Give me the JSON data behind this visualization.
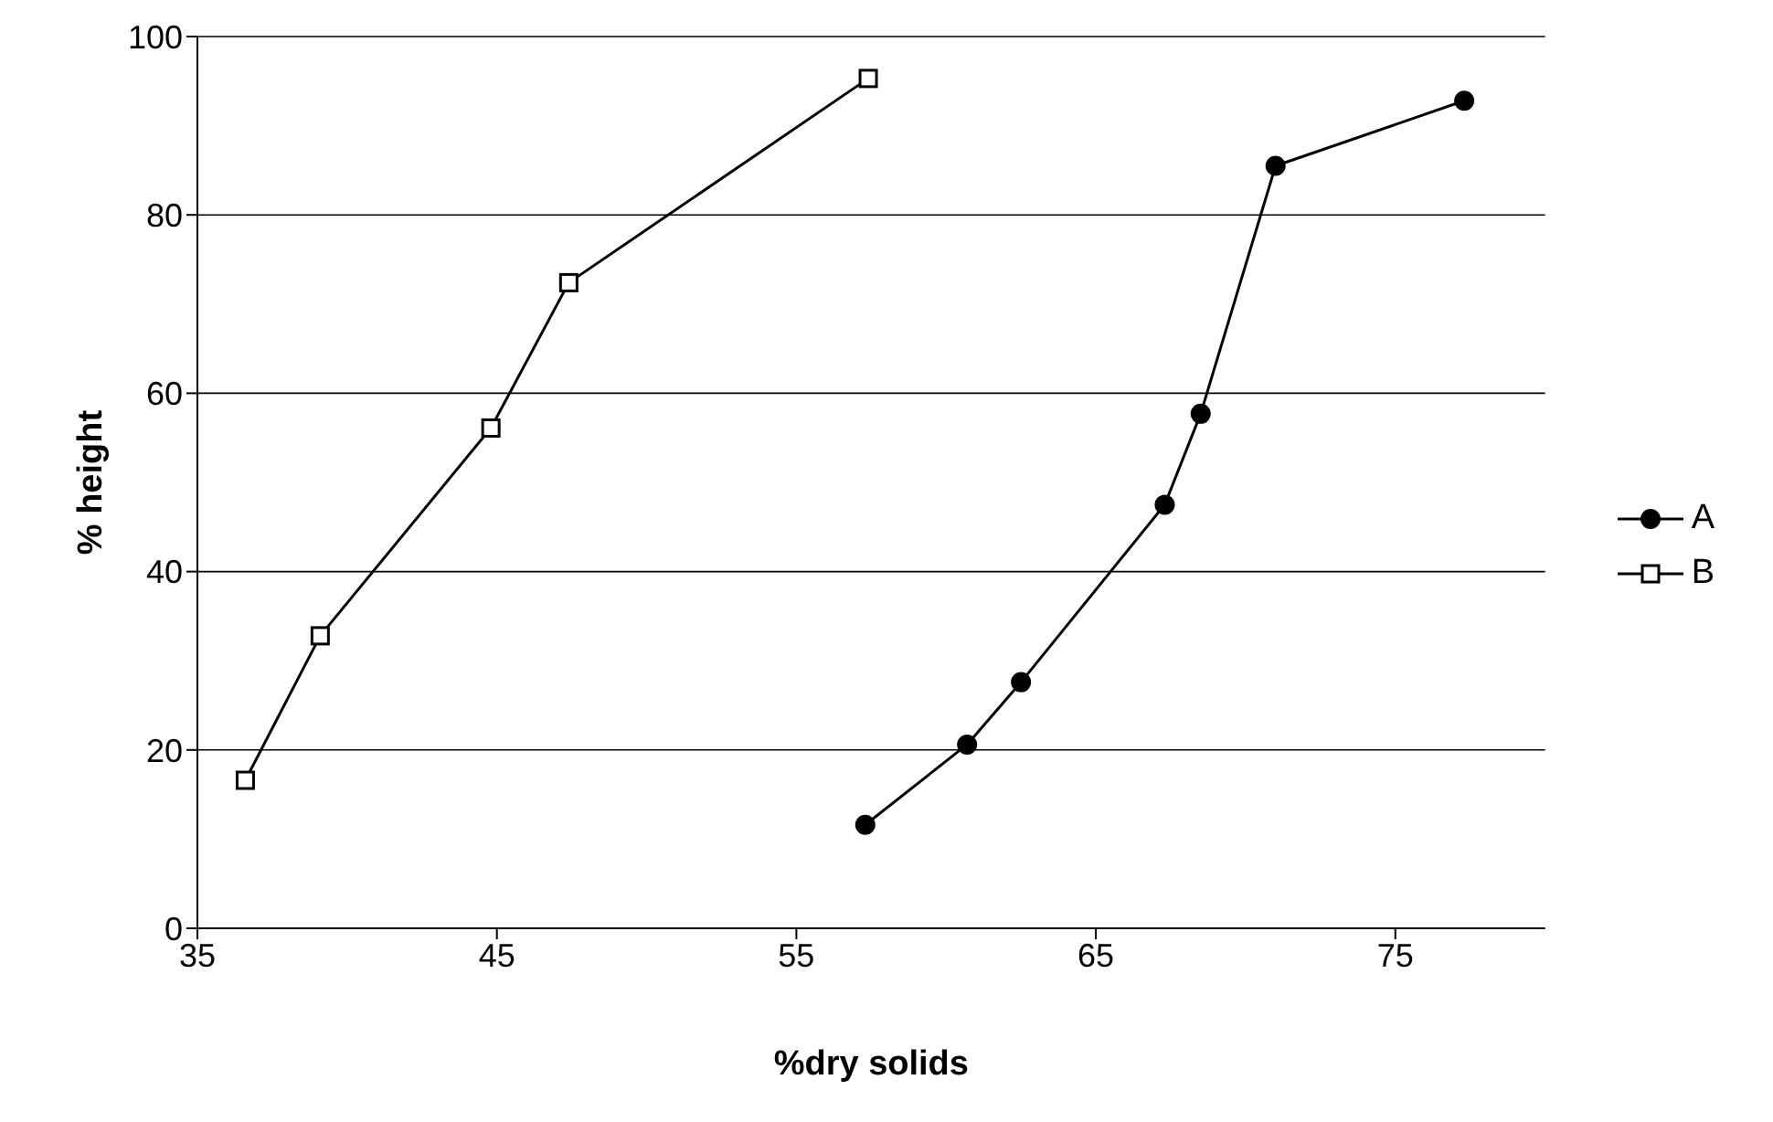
{
  "chart_data": {
    "type": "line",
    "xlabel": "%dry solids",
    "ylabel": "% height",
    "xlim": [
      35,
      80
    ],
    "xticks": [
      35,
      45,
      55,
      65,
      75
    ],
    "ylim": [
      0,
      100
    ],
    "yticks": [
      0,
      20,
      40,
      60,
      80,
      100
    ],
    "grid": "y",
    "legend": "right",
    "series": [
      {
        "name": "A",
        "color": "#000000",
        "marker": "circle",
        "x": [
          57.3,
          60.7,
          62.5,
          67.3,
          68.5,
          71.0,
          77.3
        ],
        "values": [
          11.6,
          20.6,
          27.6,
          47.5,
          57.7,
          85.5,
          92.8
        ]
      },
      {
        "name": "B",
        "color": "#000000",
        "marker": "square",
        "x": [
          36.6,
          39.1,
          44.8,
          47.4,
          57.4
        ],
        "values": [
          16.6,
          32.8,
          56.1,
          72.4,
          95.3
        ]
      }
    ]
  }
}
